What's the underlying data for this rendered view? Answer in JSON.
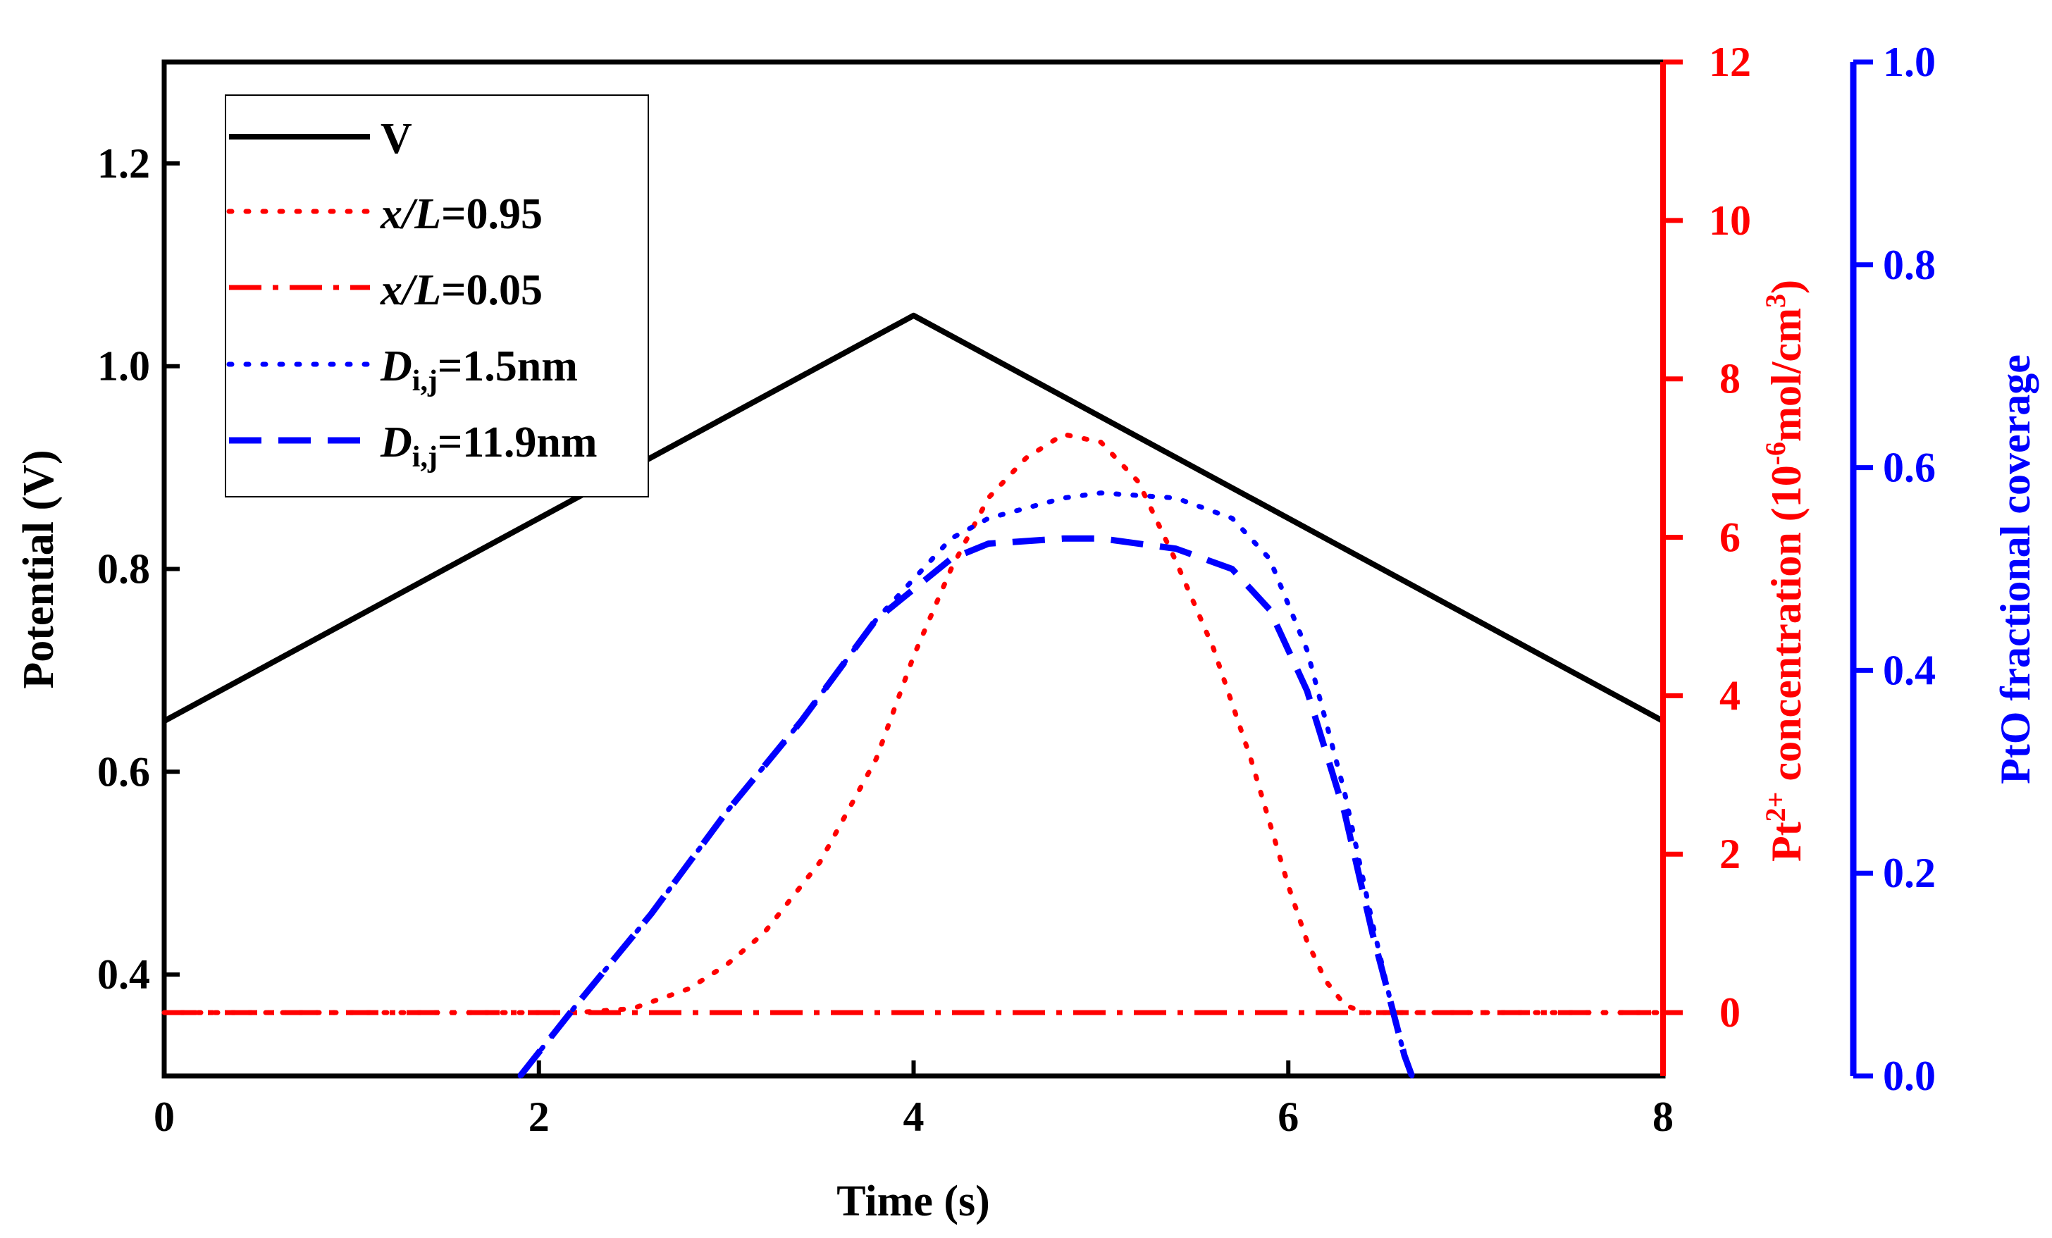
{
  "chart_data": {
    "type": "line",
    "xlabel": "Time (s)",
    "xlim": [
      0,
      8
    ],
    "xticks": [
      "0",
      "2",
      "4",
      "6",
      "8"
    ],
    "axes": {
      "left": {
        "label": "Potential (V)",
        "ylim": [
          0.3,
          1.3
        ],
        "ticks": [
          "0.4",
          "0.6",
          "0.8",
          "1.0",
          "1.2"
        ],
        "color": "#000000"
      },
      "right1": {
        "label_prefix": "Pt",
        "label_sup1": "2+",
        "label_mid": " concentration (10",
        "label_sup2": "-6",
        "label_unit": "mol/cm",
        "label_sup3": "3",
        "label_end": ")",
        "ylim": [
          -0.8,
          12
        ],
        "ticks": [
          "0",
          "2",
          "4",
          "6",
          "8",
          "10",
          "12"
        ],
        "color": "#ff0000"
      },
      "right2": {
        "label": "PtO fractional coverage",
        "ylim": [
          0,
          1
        ],
        "ticks": [
          "0.0",
          "0.2",
          "0.4",
          "0.6",
          "0.8",
          "1.0"
        ],
        "color": "#0000ff"
      }
    },
    "series": [
      {
        "name": "V",
        "legend_label": "V",
        "axis": "left",
        "color": "#000000",
        "dash": "solid",
        "x": [
          0,
          4,
          8
        ],
        "y": [
          0.65,
          1.05,
          0.65
        ]
      },
      {
        "name": "x/L=0.95",
        "legend_italic": "x/L",
        "legend_rest": "=0.95",
        "axis": "right1",
        "color": "#ff0000",
        "dash": "dot",
        "x": [
          0,
          2.2,
          2.5,
          2.8,
          3.0,
          3.2,
          3.5,
          3.8,
          4.0,
          4.2,
          4.4,
          4.6,
          4.8,
          5.0,
          5.2,
          5.4,
          5.6,
          5.8,
          6.0,
          6.1,
          6.2,
          6.3,
          6.4,
          6.6,
          8
        ],
        "y": [
          0,
          0,
          0.05,
          0.3,
          0.6,
          1.0,
          1.9,
          3.2,
          4.5,
          5.6,
          6.5,
          7.0,
          7.3,
          7.2,
          6.7,
          5.7,
          4.6,
          3.2,
          1.6,
          0.9,
          0.4,
          0.1,
          0,
          0,
          0
        ]
      },
      {
        "name": "x/L=0.05",
        "legend_italic": "x/L",
        "legend_rest": "=0.05",
        "axis": "right1",
        "color": "#ff0000",
        "dash": "dashdot",
        "x": [
          0,
          8
        ],
        "y": [
          0,
          0
        ]
      },
      {
        "name": "D=1.5nm",
        "legend_italic": "D",
        "legend_sub": "i,j",
        "legend_rest": "=1.5nm",
        "axis": "right2",
        "color": "#0000ff",
        "dash": "dot",
        "x": [
          1.9,
          2.2,
          2.6,
          3.0,
          3.4,
          3.8,
          4.0,
          4.2,
          4.4,
          4.8,
          5.0,
          5.4,
          5.7,
          5.9,
          6.1,
          6.3,
          6.45,
          6.55,
          6.62,
          6.66
        ],
        "y": [
          0.0,
          0.07,
          0.16,
          0.26,
          0.35,
          0.45,
          0.49,
          0.53,
          0.55,
          0.57,
          0.575,
          0.57,
          0.55,
          0.51,
          0.42,
          0.28,
          0.15,
          0.07,
          0.02,
          0.0
        ]
      },
      {
        "name": "D=11.9nm",
        "legend_italic": "D",
        "legend_sub": "i,j",
        "legend_rest": "=11.9nm",
        "axis": "right2",
        "color": "#0000ff",
        "dash": "dash",
        "x": [
          1.9,
          2.2,
          2.6,
          3.0,
          3.4,
          3.8,
          4.0,
          4.2,
          4.4,
          4.8,
          5.0,
          5.4,
          5.7,
          5.9,
          6.1,
          6.3,
          6.45,
          6.55,
          6.62,
          6.66
        ],
        "y": [
          0.0,
          0.07,
          0.16,
          0.26,
          0.35,
          0.45,
          0.48,
          0.51,
          0.525,
          0.53,
          0.53,
          0.52,
          0.5,
          0.46,
          0.38,
          0.26,
          0.14,
          0.07,
          0.02,
          0.0
        ]
      }
    ],
    "legend_position": "top-left"
  }
}
